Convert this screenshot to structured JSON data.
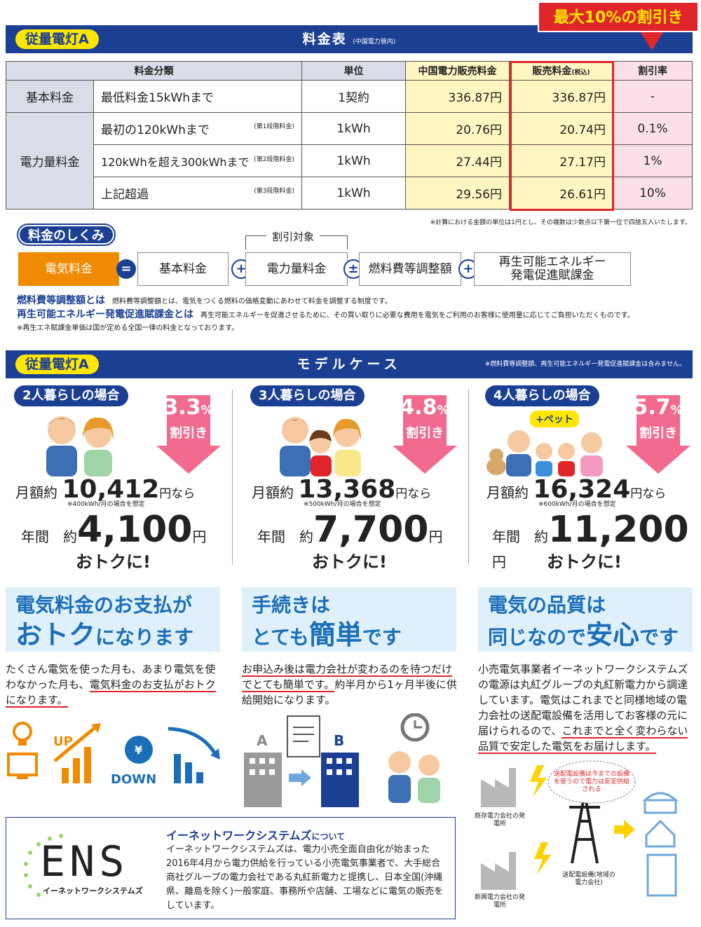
{
  "header1": {
    "plan": "従量電灯A",
    "title": "料金表",
    "title_note": "(中国電力管内)",
    "max_discount": "最大10%の割引き"
  },
  "table": {
    "headers": [
      "料金分類",
      "単位",
      "中国電力販売料金",
      "販売料金",
      "(税込)",
      "割引率"
    ],
    "rows": [
      {
        "category": "基本料金",
        "item": "最低料金15kWhまで",
        "stage": "",
        "unit": "1契約",
        "chugoku": "336.87円",
        "price": "336.87円",
        "discount": "-"
      },
      {
        "category": "電力量料金",
        "item": "最初の120kWhまで",
        "stage": "(第1段階料金)",
        "unit": "1kWh",
        "chugoku": "20.76円",
        "price": "20.74円",
        "discount": "0.1%"
      },
      {
        "category": "",
        "item": "120kWhを超え300kWhまで",
        "stage": "(第2段階料金)",
        "unit": "1kWh",
        "chugoku": "27.44円",
        "price": "27.17円",
        "discount": "1%"
      },
      {
        "category": "",
        "item": "上記超過",
        "stage": "(第3段階料金)",
        "unit": "1kWh",
        "chugoku": "29.56円",
        "price": "26.61円",
        "discount": "10%"
      }
    ],
    "footnote": "※計算における金額の単位は1円とし、その端数は少数点以下第一位で四捨五入いたします。"
  },
  "structure": {
    "title": "料金のしくみ",
    "target_label": "割引対象",
    "boxes": [
      "電気料金",
      "基本料金",
      "電力量料金",
      "燃料費等調整額",
      "再生可能エネルギー",
      "発電促進賦課金"
    ],
    "ops": [
      "=",
      "+",
      "±",
      "+"
    ],
    "def1_term": "燃料費等調整額とは",
    "def1_text": "燃料費等調整額とは、電気をつくる燃料の価格変動にあわせて料金を調整する制度です。",
    "def2_term": "再生可能エネルギー発電促進賦課金とは",
    "def2_text": "再生可能エネルギーを促進させるために、その買い取りに必要な費用を電気をご利用のお客様に使用量に応じてご負担いただくものです。",
    "def3_text": "※再生エネ賦課金単価は国が定める全国一律の料金となっております。"
  },
  "header2": {
    "plan": "従量電灯A",
    "title": "モデルケース",
    "note": "※燃料費等調整額、再生可能エネルギー発電促進賦課金は含みません。"
  },
  "cases": [
    {
      "label": "2人暮らしの場合",
      "pct": "3.3",
      "pct_unit": "%",
      "pct_label": "割引き",
      "monthly_prefix": "月額約",
      "monthly": "10,412",
      "monthly_suffix": "円なら",
      "assume": "※400kWh/月の場合を想定",
      "year_prefix": "年間",
      "year_approx": "約",
      "yearly": "4,100",
      "yen": "円",
      "otoku": "おトクに!",
      "extra": ""
    },
    {
      "label": "3人暮らしの場合",
      "pct": "4.8",
      "pct_unit": "%",
      "pct_label": "割引き",
      "monthly_prefix": "月額約",
      "monthly": "13,368",
      "monthly_suffix": "円なら",
      "assume": "※500kWh/月の場合を想定",
      "year_prefix": "年間",
      "year_approx": "約",
      "yearly": "7,700",
      "yen": "円",
      "otoku": "おトクに!",
      "extra": ""
    },
    {
      "label": "4人暮らしの場合",
      "pct": "5.7",
      "pct_unit": "%",
      "pct_label": "割引き",
      "monthly_prefix": "月額約",
      "monthly": "16,324",
      "monthly_suffix": "円なら",
      "assume": "※600kWh/月の場合を想定",
      "year_prefix": "年間",
      "year_approx": "約",
      "yearly": "11,200",
      "yen": "円",
      "otoku": "おトクに!",
      "extra": "+ペット"
    }
  ],
  "benefits": [
    {
      "l1": "電気料金のお支払が",
      "l2a": "おトク",
      "l2b": "になります",
      "text_pre": "たくさん電気を使った月も、あまり電気を使わなかった月も、",
      "text_u": "電気料金のお支払がおトクになります。",
      "text_post": ""
    },
    {
      "l1": "手続きは",
      "l2a": "とても",
      "l2b": "簡単",
      "l2c": "です",
      "text_pre": "",
      "text_u": "お申込み後は電力会社が変わるのを待つだけでとても簡単です。",
      "text_post": "約半月から1ヶ月半後に供給開始になります。"
    },
    {
      "l1": "電気の品質は",
      "l2a": "同じなので",
      "l2b": "安心",
      "l2c": "です",
      "text_pre": "小売電気事業者イーネットワークシステムズの電源は丸紅グループの丸紅新電力から調達しています。電気はこれまでと同様地域の電力会社の送配電設備を活用してお客様の元に届けられるので、",
      "text_u": "これまでと全く変わらない品質で安定した電気をお届けします。",
      "text_post": ""
    }
  ],
  "icons1": {
    "up": "UP",
    "yen": "¥",
    "down": "DOWN"
  },
  "icons2": {
    "a": "A",
    "b": "B"
  },
  "grid": {
    "bubble": "送配電設備は今までの設備を使うので電力は安定供給される",
    "existing": "既存電力会社の発電所",
    "new": "新興電力会社の発電所",
    "tower": "送配電設備(地域の電力会社)"
  },
  "ens": {
    "logo": "ENS",
    "logo_sub": "イーネットワークシステムズ",
    "head": "イーネットワークシステムズ",
    "head_suffix": "について",
    "body": "イーネットワークシステムズは、電力小売全面自由化が始まった2016年4月から電力供給を行っている小売電気事業者で、大手総合商社グループの電力会社である丸紅新電力と提携し、日本全国(沖縄県、離島を除く)一般家庭、事務所や店舗、工場などに電気の販売をしています。"
  },
  "colors": {
    "navy": "#1b3f93",
    "yellow": "#ffe600",
    "red": "#e0262a",
    "orange": "#f08a00",
    "pink": "#f26a8d",
    "lightblue": "#dff0fb"
  }
}
